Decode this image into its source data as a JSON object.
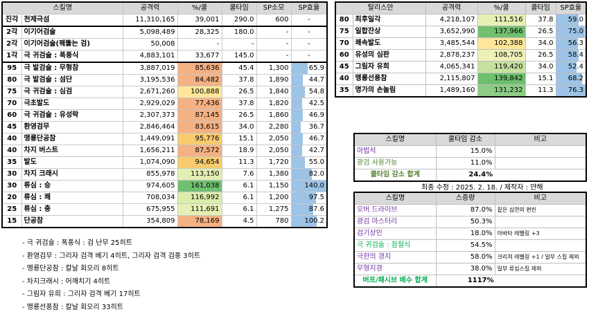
{
  "main_table": {
    "headers": [
      "스킬명",
      "공격력",
      "%/쿨",
      "쿨타임",
      "SP소모",
      "SP효율"
    ],
    "rows": [
      {
        "lv": "진각",
        "name": "천제극섬",
        "atk": "11,310,165",
        "pct": "39,001",
        "pct_color": "",
        "cd": "290.0",
        "sp": "600",
        "eff": "-",
        "eff_ratio": 0
      },
      {
        "lv": "2각",
        "name": "이기어검술",
        "atk": "5,098,489",
        "pct": "28,325",
        "pct_color": "",
        "cd": "180.0",
        "sp": "-",
        "eff": "-",
        "eff_ratio": 0
      },
      {
        "lv": "2각",
        "name": "이기어검술(꿰뚫는 검)",
        "atk": "50,008",
        "pct": "-",
        "pct_color": "",
        "cd": "-",
        "sp": "-",
        "eff": "-",
        "eff_ratio": 0
      },
      {
        "lv": "1각",
        "name": "극 귀검술 : 폭풍식",
        "atk": "4,883,101",
        "pct": "33,677",
        "pct_color": "",
        "cd": "145.0",
        "sp": "-",
        "eff": "-",
        "eff_ratio": 0
      },
      {
        "lv": "95",
        "name": "극 발검술 : 무형참",
        "atk": "3,887,019",
        "pct": "85,636",
        "pct_color": "#f4b183",
        "cd": "45.4",
        "sp": "1,300",
        "eff": "65.9",
        "eff_ratio": 0.47
      },
      {
        "lv": "80",
        "name": "극 발검술 : 섬단",
        "atk": "3,195,536",
        "pct": "84,482",
        "pct_color": "#f4b183",
        "cd": "37.8",
        "sp": "1,890",
        "eff": "44.7",
        "eff_ratio": 0.32
      },
      {
        "lv": "75",
        "name": "극 귀검술 : 심검",
        "atk": "2,671,260",
        "pct": "100,888",
        "pct_color": "#ffe699",
        "cd": "26.5",
        "sp": "1,840",
        "eff": "54.8",
        "eff_ratio": 0.39
      },
      {
        "lv": "70",
        "name": "극초발도",
        "atk": "2,929,029",
        "pct": "77,436",
        "pct_color": "#f4b183",
        "cd": "37.8",
        "sp": "1,820",
        "eff": "42.5",
        "eff_ratio": 0.3
      },
      {
        "lv": "60",
        "name": "극 귀검술 : 유성락",
        "atk": "2,307,373",
        "pct": "87,145",
        "pct_color": "#f4b183",
        "cd": "26.5",
        "sp": "1,860",
        "eff": "46.9",
        "eff_ratio": 0.33
      },
      {
        "lv": "45",
        "name": "환영검무",
        "atk": "2,846,464",
        "pct": "83,615",
        "pct_color": "#f4b183",
        "cd": "34.0",
        "sp": "2,280",
        "eff": "36.7",
        "eff_ratio": 0.26
      },
      {
        "lv": "40",
        "name": "맹룡단공참",
        "atk": "1,449,091",
        "pct": "95,776",
        "pct_color": "#f8cb6e",
        "cd": "15.1",
        "sp": "2,050",
        "eff": "46.7",
        "eff_ratio": 0.33
      },
      {
        "lv": "40",
        "name": "차지 버스트",
        "atk": "1,656,211",
        "pct": "87,572",
        "pct_color": "#f4b183",
        "cd": "18.9",
        "sp": "2,050",
        "eff": "42.7",
        "eff_ratio": 0.3
      },
      {
        "lv": "35",
        "name": "발도",
        "atk": "1,074,090",
        "pct": "94,654",
        "pct_color": "#f8cb6e",
        "cd": "11.3",
        "sp": "1,720",
        "eff": "55.0",
        "eff_ratio": 0.39
      },
      {
        "lv": "30",
        "name": "차지 크래시",
        "atk": "855,978",
        "pct": "113,150",
        "pct_color": "#e2efb3",
        "cd": "7.6",
        "sp": "1,380",
        "eff": "82.0",
        "eff_ratio": 0.58
      },
      {
        "lv": "30",
        "name": "류심 : 승",
        "atk": "974,605",
        "pct": "161,038",
        "pct_color": "#70c070",
        "cd": "6.1",
        "sp": "1,150",
        "eff": "140.0",
        "eff_ratio": 1.0
      },
      {
        "lv": "20",
        "name": "류심 : 쾌",
        "atk": "708,034",
        "pct": "116,992",
        "pct_color": "#dcedab",
        "cd": "6.1",
        "sp": "1,200",
        "eff": "97.5",
        "eff_ratio": 0.7
      },
      {
        "lv": "25",
        "name": "류심 : 충",
        "atk": "675,955",
        "pct": "111,691",
        "pct_color": "#e6f0b4",
        "cd": "6.1",
        "sp": "1,275",
        "eff": "87.6",
        "eff_ratio": 0.63
      },
      {
        "lv": "15",
        "name": "단공참",
        "atk": "354,809",
        "pct": "78,169",
        "pct_color": "#f4b183",
        "cd": "4.5",
        "sp": "780",
        "eff": "100.2",
        "eff_ratio": 0.72
      }
    ]
  },
  "talisman_table": {
    "headers": [
      "탈리스만",
      "공격력",
      "%/쿨",
      "쿨타임",
      "SP효율"
    ],
    "rows": [
      {
        "lv": "80",
        "name": "최후일각",
        "atk": "4,218,107",
        "pct": "111,516",
        "pct_color": "#e6f0b4",
        "cd": "37.8",
        "eff": "59.0",
        "eff_ratio": 0.77
      },
      {
        "lv": "75",
        "name": "일합잔상",
        "atk": "3,652,990",
        "pct": "137,966",
        "pct_color": "#70c070",
        "cd": "26.5",
        "eff": "75.0",
        "eff_ratio": 0.98
      },
      {
        "lv": "70",
        "name": "쾌속발도",
        "atk": "3,485,544",
        "pct": "102,388",
        "pct_color": "#ffe699",
        "cd": "34.0",
        "eff": "56.3",
        "eff_ratio": 0.74
      },
      {
        "lv": "60",
        "name": "유성의 심판",
        "atk": "2,878,237",
        "pct": "108,705",
        "pct_color": "#eef1b6",
        "cd": "26.5",
        "eff": "58.4",
        "eff_ratio": 0.76
      },
      {
        "lv": "45",
        "name": "그림자 유희",
        "atk": "4,065,341",
        "pct": "119,420",
        "pct_color": "#c6e0a0",
        "cd": "34.0",
        "eff": "52.4",
        "eff_ratio": 0.69
      },
      {
        "lv": "40",
        "name": "맹룡선풍참",
        "atk": "2,115,807",
        "pct": "139,842",
        "pct_color": "#6dbf6d",
        "cd": "15.1",
        "eff": "68.2",
        "eff_ratio": 0.89
      },
      {
        "lv": "35",
        "name": "명가의 손놀림",
        "atk": "1,489,160",
        "pct": "131,232",
        "pct_color": "#8ccc84",
        "cd": "11.3",
        "eff": "76.3",
        "eff_ratio": 1.0
      }
    ]
  },
  "cooldown_table": {
    "headers": [
      "스킬명",
      "쿨타임 감소",
      "비고"
    ],
    "rows": [
      {
        "name": "마법석",
        "value": "15.0%",
        "note": "",
        "color": "#7030a0"
      },
      {
        "name": "광검 사용가능",
        "value": "11.0%",
        "note": "",
        "color": "#548235"
      }
    ],
    "sum_label": "쿨타임 감소 합계",
    "sum_value": "24.4%",
    "sum_color": "#548235"
  },
  "revision_note": "최종 수정 : 2025. 2. 18. / 제작자 : 얀해",
  "buff_table": {
    "headers": [
      "스킬명",
      "스증량",
      "비고"
    ],
    "rows": [
      {
        "name": "오버 드라이브",
        "value": "87.0%",
        "note": "짙은 심연의 편린",
        "color": "#7030a0"
      },
      {
        "name": "광검 마스터리",
        "value": "50.3%",
        "note": "",
        "color": "#7030a0"
      },
      {
        "name": "검기상인",
        "value": "18.0%",
        "note": "아바타 레벨링 +3",
        "color": "#7030a0"
      },
      {
        "name": "극 귀검술 : 참철식",
        "value": "54.5%",
        "note": "",
        "color": "#00b050"
      },
      {
        "name": "극한의 경지",
        "value": "58.0%",
        "note": "크리쳐 레벨링 +1 / 일부 스킬 제외",
        "color": "#7030a0"
      },
      {
        "name": "무형지경",
        "value": "38.0%",
        "note": "일부 류심스킬 제외",
        "color": "#7030a0"
      }
    ],
    "sum_label": "버프/패시브 배수 합계",
    "sum_value": "1117%",
    "sum_color": "#00b050"
  },
  "notes": [
    "- 극 귀검술 : 폭풍식 : 검 난무 25히트",
    "- 환영검무 : 그리자 검격 베기 4히트, 그리자 검격 검풍 3히트",
    "- 맹룡단공참 : 칼날 회오리 8히트",
    "- 차지크래시 : 어깨치기 4히트",
    "- 그림자 유희 : 그리자 검격 베기 17히트",
    "- 맹룡선풍참 : 칼날 회오리 33히트"
  ]
}
